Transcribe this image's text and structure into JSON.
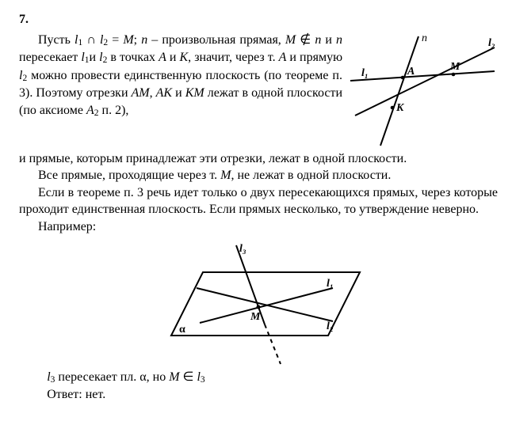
{
  "problem_number": "7.",
  "top_paragraph_html": "Пусть <i>l</i><sub>1</sub> ∩ <i>l</i><sub>2</sub> = <i>M</i>; <i>n</i> – произвольная прямая, <i>M</i> ∉ <i>n</i> и <i>n</i> пересекает <i>l</i><sub>1</sub>и <i>l</i><sub>2</sub> в точках <i>A</i> и <i>K</i>, значит, через т. <i>A</i> и прямую <i>l</i><sub>2</sub> можно провести единственную плоскость (по теореме п. 3). Поэтому отрезки <i>AM</i>, <i>AK</i> и <i>KM</i> лежат в одной плоскости (по аксиоме <i>A</i><sub>2</sub> п. 2),",
  "continuation_html": "и прямые, которым принадлежат эти отрезки, лежат в одной плоскости.",
  "para2_html": "Все прямые, проходящие через т. <i>M</i>, не лежат в одной плоскости.",
  "para3_html": "Если в теореме п. 3 речь идет только о двух пересекающихся прямых, через которые проходит единственная плоскость. Если прямых несколько, то утверждение неверно.",
  "para4_html": "Например:",
  "bottom1_html": "<i>l</i><sub>3</sub> пересекает пл. α, но <i>M</i> ∈  <i>l</i><sub>3</sub>",
  "bottom2_html": "Ответ: нет.",
  "fig1": {
    "labels": {
      "n": "n",
      "l1": "l₁",
      "l2": "l₂",
      "A": "A",
      "M": "M",
      "K": "K"
    },
    "stroke": "#000000",
    "stroke_width": 2,
    "font_family": "Times New Roman, Times, serif",
    "font_size": 14
  },
  "fig2": {
    "labels": {
      "l1": "l₁",
      "l2": "l₂",
      "l3": "l₃",
      "M": "M",
      "alpha": "α"
    },
    "stroke": "#000000",
    "stroke_width": 2,
    "font_family": "Times New Roman, Times, serif",
    "font_size": 14
  }
}
